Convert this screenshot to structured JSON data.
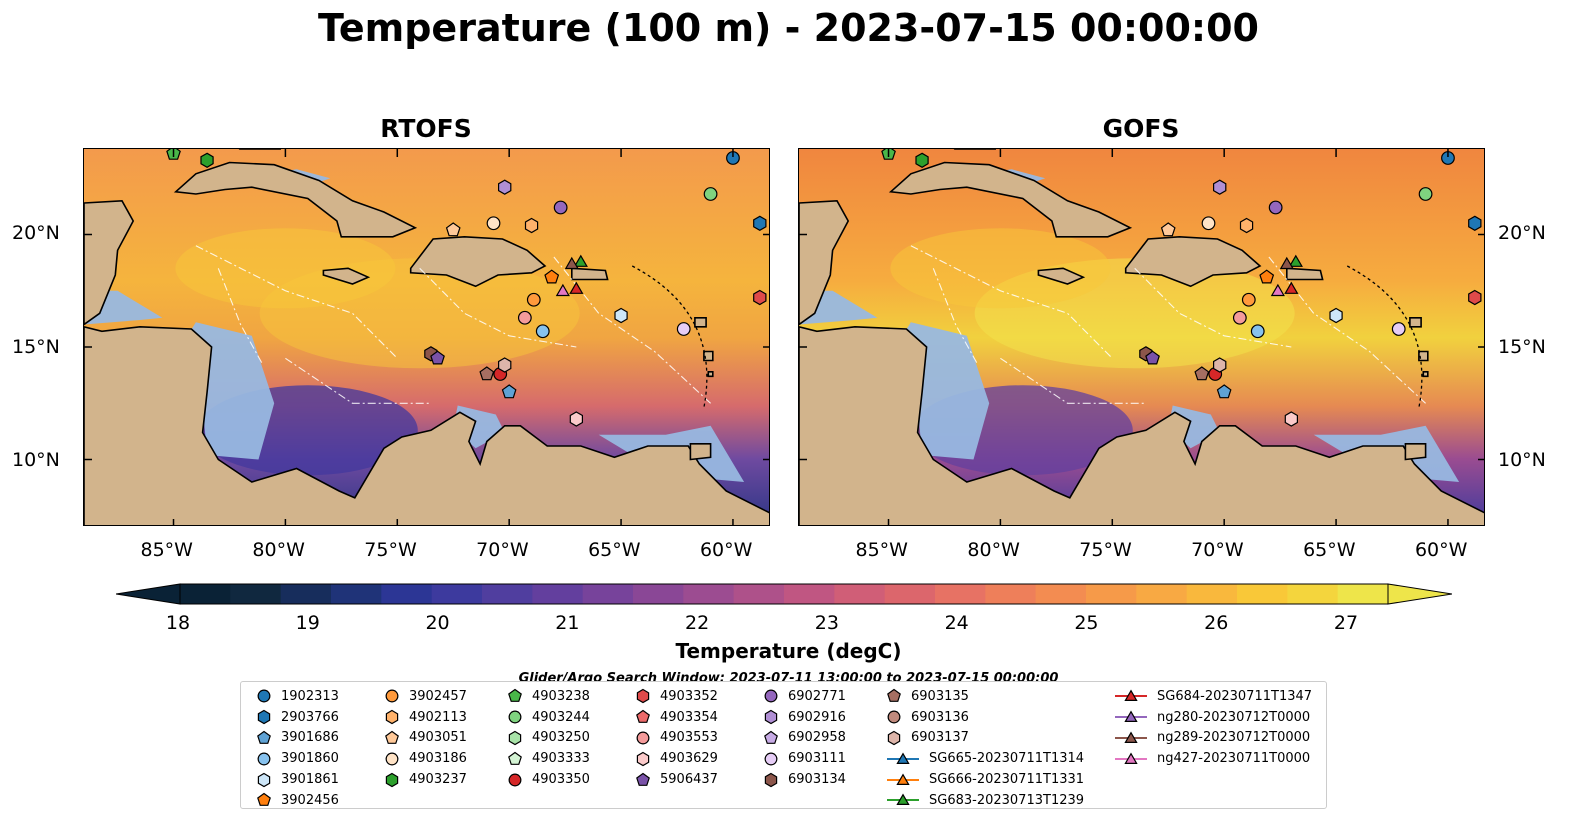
{
  "title": "Temperature (100 m) - 2023-07-15 00:00:00",
  "panels": [
    {
      "title": "RTOFS"
    },
    {
      "title": "GOFS"
    }
  ],
  "axes": {
    "lat_ticks": [
      "20°N",
      "15°N",
      "10°N"
    ],
    "lon_ticks": [
      "85°W",
      "80°W",
      "75°W",
      "70°W",
      "65°W",
      "60°W"
    ]
  },
  "colorbar": {
    "label": "Temperature (degC)",
    "min": 18,
    "max": 27,
    "ticks": [
      "18",
      "19",
      "20",
      "21",
      "22",
      "23",
      "24",
      "25",
      "26",
      "27"
    ],
    "colors": [
      "#0a2236",
      "#10283f",
      "#172d5c",
      "#1f3378",
      "#2c3695",
      "#3d3a9e",
      "#503e9f",
      "#633f9e",
      "#77439b",
      "#8a4796",
      "#9c4c91",
      "#ae518a",
      "#c05682",
      "#d05e77",
      "#dc666c",
      "#e77264",
      "#ee7f5a",
      "#f38c51",
      "#f69a49",
      "#f8a943",
      "#f9b83d",
      "#f9c838",
      "#f4d53d",
      "#eee54a"
    ]
  },
  "search_window": "Glider/Argo Search Window: 2023-07-11 13:00:00 to 2023-07-15 00:00:00",
  "legend": [
    {
      "label": "1902313",
      "marker": "circle",
      "color": "#1f77b4"
    },
    {
      "label": "2903766",
      "marker": "hexagon",
      "color": "#1f77b4"
    },
    {
      "label": "3901686",
      "marker": "pentagon",
      "color": "#5fa2d4"
    },
    {
      "label": "3901860",
      "marker": "circle",
      "color": "#87c2ee"
    },
    {
      "label": "3901861",
      "marker": "hexagon",
      "color": "#cde6f8"
    },
    {
      "label": "3902456",
      "marker": "pentagon",
      "color": "#ff7f0e"
    },
    {
      "label": "3902457",
      "marker": "circle",
      "color": "#ff9a3c"
    },
    {
      "label": "4902113",
      "marker": "hexagon",
      "color": "#ffb26b"
    },
    {
      "label": "4903051",
      "marker": "pentagon",
      "color": "#ffc999"
    },
    {
      "label": "4903186",
      "marker": "circle",
      "color": "#ffe3c6"
    },
    {
      "label": "4903237",
      "marker": "hexagon",
      "color": "#2ca02c"
    },
    {
      "label": "4903238",
      "marker": "pentagon",
      "color": "#49b749"
    },
    {
      "label": "4903244",
      "marker": "circle",
      "color": "#7fd37f"
    },
    {
      "label": "4903250",
      "marker": "hexagon",
      "color": "#a8e3a8"
    },
    {
      "label": "4903333",
      "marker": "pentagon",
      "color": "#d4f4d4"
    },
    {
      "label": "4903350",
      "marker": "circle",
      "color": "#d62728"
    },
    {
      "label": "4903352",
      "marker": "hexagon",
      "color": "#df4a4a"
    },
    {
      "label": "4903354",
      "marker": "pentagon",
      "color": "#ec6a6a"
    },
    {
      "label": "4903553",
      "marker": "circle",
      "color": "#f49b9b"
    },
    {
      "label": "4903629",
      "marker": "hexagon",
      "color": "#fbcaca"
    },
    {
      "label": "5906437",
      "marker": "pentagon",
      "color": "#7a52a8"
    },
    {
      "label": "6902771",
      "marker": "circle",
      "color": "#9467bd"
    },
    {
      "label": "6902916",
      "marker": "hexagon",
      "color": "#b08fd4"
    },
    {
      "label": "6902958",
      "marker": "pentagon",
      "color": "#c7abe5"
    },
    {
      "label": "6903111",
      "marker": "circle",
      "color": "#e6cdf6"
    },
    {
      "label": "6903134",
      "marker": "hexagon",
      "color": "#8c564b"
    },
    {
      "label": "6903135",
      "marker": "pentagon",
      "color": "#a66f62"
    },
    {
      "label": "6903136",
      "marker": "circle",
      "color": "#c08a7d"
    },
    {
      "label": "6903137",
      "marker": "hexagon",
      "color": "#ddb5aa"
    },
    {
      "label": "SG665-20230711T1314",
      "marker": "triangle",
      "color": "#1f77b4"
    },
    {
      "label": "SG666-20230711T1331",
      "marker": "triangle",
      "color": "#ff7f0e"
    },
    {
      "label": "SG683-20230713T1239",
      "marker": "triangle",
      "color": "#2ca02c"
    },
    {
      "label": "SG684-20230711T1347",
      "marker": "triangle",
      "color": "#d62728"
    },
    {
      "label": "ng280-20230712T0000",
      "marker": "triangle",
      "color": "#9467bd"
    },
    {
      "label": "ng289-20230712T0000",
      "marker": "triangle",
      "color": "#8c564b"
    },
    {
      "label": "ng427-20230711T0000",
      "marker": "triangle",
      "color": "#e377c2"
    }
  ],
  "markers": [
    {
      "id": "1902313",
      "lon": -60.0,
      "lat": 23.4
    },
    {
      "id": "2903766",
      "lon": -58.8,
      "lat": 20.5
    },
    {
      "id": "3901686",
      "lon": -70.0,
      "lat": 13.0
    },
    {
      "id": "3901860",
      "lon": -68.5,
      "lat": 15.7
    },
    {
      "id": "3901861",
      "lon": -65.0,
      "lat": 16.4
    },
    {
      "id": "3902456",
      "lon": -68.1,
      "lat": 18.1
    },
    {
      "id": "3902457",
      "lon": -68.9,
      "lat": 17.1
    },
    {
      "id": "4902113",
      "lon": -69.0,
      "lat": 20.4
    },
    {
      "id": "4903051",
      "lon": -72.5,
      "lat": 20.2
    },
    {
      "id": "4903186",
      "lon": -70.7,
      "lat": 20.5
    },
    {
      "id": "4903237",
      "lon": -83.5,
      "lat": 23.3
    },
    {
      "id": "4903238",
      "lon": -85.0,
      "lat": 23.6
    },
    {
      "id": "4903244",
      "lon": -61.0,
      "lat": 21.8
    },
    {
      "id": "4903350",
      "lon": -70.4,
      "lat": 13.8
    },
    {
      "id": "4903352",
      "lon": -58.8,
      "lat": 17.2
    },
    {
      "id": "4903553",
      "lon": -69.3,
      "lat": 16.3
    },
    {
      "id": "4903629",
      "lon": -67.0,
      "lat": 11.8
    },
    {
      "id": "6903134",
      "lon": -73.5,
      "lat": 14.7
    },
    {
      "id": "5906437",
      "lon": -73.2,
      "lat": 14.5
    },
    {
      "id": "6902771",
      "lon": -67.7,
      "lat": 21.2
    },
    {
      "id": "6902916",
      "lon": -70.2,
      "lat": 22.1
    },
    {
      "id": "6903111",
      "lon": -62.2,
      "lat": 15.8
    },
    {
      "id": "6903135",
      "lon": -71.0,
      "lat": 13.8
    },
    {
      "id": "6903137",
      "lon": -70.2,
      "lat": 14.2
    },
    {
      "id": "SG683-20230713T1239",
      "lon": -66.8,
      "lat": 18.8
    },
    {
      "id": "ng289-20230712T0000",
      "lon": -67.2,
      "lat": 18.7
    },
    {
      "id": "SG684-20230711T1347",
      "lon": -67.0,
      "lat": 17.6
    },
    {
      "id": "ng427-20230711T0000",
      "lon": -67.6,
      "lat": 17.5
    }
  ]
}
